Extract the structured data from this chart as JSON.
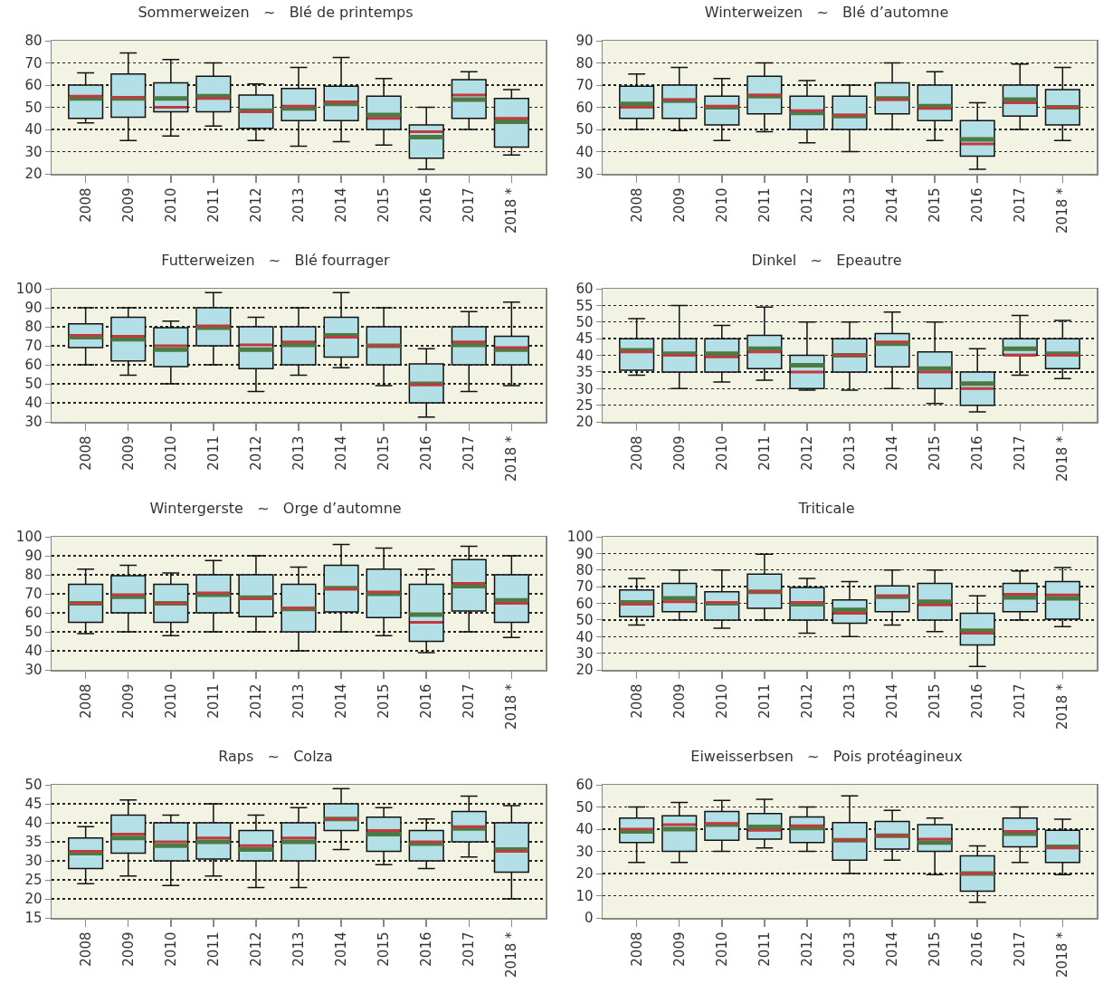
{
  "chart_data": [
    {
      "type": "box",
      "title": "Sommerweizen   ~   Blé de printemps",
      "categories": [
        "2008",
        "2009",
        "2010",
        "2011",
        "2012",
        "2013",
        "2014",
        "2015",
        "2016",
        "2017",
        "2018 *"
      ],
      "color": "#b3dfe6",
      "ylim": [
        20,
        80
      ],
      "yticks": [
        20,
        30,
        40,
        50,
        60,
        70,
        80
      ],
      "grid": "y",
      "boxes": [
        {
          "low": 43,
          "q1": 45,
          "median": 55,
          "q3": 60,
          "high": 65.5,
          "mean": 54
        },
        {
          "low": 35,
          "q1": 45.5,
          "median": 54.5,
          "q3": 65,
          "high": 74.5,
          "mean": 54
        },
        {
          "low": 37,
          "q1": 48,
          "median": 50,
          "q3": 61,
          "high": 71.5,
          "mean": 54
        },
        {
          "low": 41.5,
          "q1": 48,
          "median": 54,
          "q3": 64,
          "high": 70,
          "mean": 55
        },
        {
          "low": 35,
          "q1": 40.5,
          "median": 48,
          "q3": 55.5,
          "high": 60.5,
          "mean": 48.5
        },
        {
          "low": 32.5,
          "q1": 44,
          "median": 50.5,
          "q3": 58.5,
          "high": 68,
          "mean": 49.5
        },
        {
          "low": 34.5,
          "q1": 44,
          "median": 52.5,
          "q3": 59.5,
          "high": 72.5,
          "mean": 51.5
        },
        {
          "low": 33,
          "q1": 40,
          "median": 45,
          "q3": 55,
          "high": 63,
          "mean": 46.5
        },
        {
          "low": 22,
          "q1": 27,
          "median": 39,
          "q3": 42,
          "high": 50,
          "mean": 36.5
        },
        {
          "low": 40,
          "q1": 45,
          "median": 55.5,
          "q3": 62.5,
          "high": 66,
          "mean": 53.5
        },
        {
          "low": 28.5,
          "q1": 32,
          "median": 45,
          "q3": 54,
          "high": 58,
          "mean": 43.5
        }
      ]
    },
    {
      "type": "box",
      "title": "Winterweizen   ~   Blé d’automne",
      "categories": [
        "2008",
        "2009",
        "2010",
        "2011",
        "2012",
        "2013",
        "2014",
        "2015",
        "2016",
        "2017",
        "2018 *"
      ],
      "color": "#b3dfe6",
      "ylim": [
        30,
        90
      ],
      "yticks": [
        30,
        40,
        50,
        60,
        70,
        80,
        90
      ],
      "grid": "y",
      "boxes": [
        {
          "low": 50,
          "q1": 55,
          "median": 60,
          "q3": 69.5,
          "high": 75,
          "mean": 61.5
        },
        {
          "low": 49.5,
          "q1": 55,
          "median": 63.5,
          "q3": 70,
          "high": 78,
          "mean": 63
        },
        {
          "low": 45,
          "q1": 52,
          "median": 60.5,
          "q3": 65,
          "high": 73,
          "mean": 60
        },
        {
          "low": 49,
          "q1": 57,
          "median": 65.5,
          "q3": 74,
          "high": 80,
          "mean": 65
        },
        {
          "low": 44,
          "q1": 50,
          "median": 58.5,
          "q3": 65,
          "high": 72,
          "mean": 57.5
        },
        {
          "low": 40,
          "q1": 50,
          "median": 56.5,
          "q3": 65,
          "high": 70,
          "mean": 56
        },
        {
          "low": 50,
          "q1": 57,
          "median": 63.5,
          "q3": 71,
          "high": 80,
          "mean": 64
        },
        {
          "low": 45,
          "q1": 54,
          "median": 59.5,
          "q3": 70,
          "high": 76,
          "mean": 60.5
        },
        {
          "low": 32,
          "q1": 38,
          "median": 43.5,
          "q3": 54,
          "high": 62,
          "mean": 45.5
        },
        {
          "low": 50,
          "q1": 56,
          "median": 62,
          "q3": 70,
          "high": 79.5,
          "mean": 63.5
        },
        {
          "low": 45,
          "q1": 52,
          "median": 60,
          "q3": 68,
          "high": 78,
          "mean": 60
        }
      ]
    },
    {
      "type": "box",
      "title": "Futterweizen   ~   Blé fourrager",
      "categories": [
        "2008",
        "2009",
        "2010",
        "2011",
        "2012",
        "2013",
        "2014",
        "2015",
        "2016",
        "2017",
        "2018 *"
      ],
      "color": "#b3dfe6",
      "ylim": [
        30,
        100
      ],
      "yticks": [
        30,
        40,
        50,
        60,
        70,
        80,
        90,
        100
      ],
      "grid": "y",
      "boxes": [
        {
          "low": 60,
          "q1": 69,
          "median": 75.5,
          "q3": 81.5,
          "high": 90,
          "mean": 74.5
        },
        {
          "low": 54.5,
          "q1": 62,
          "median": 75,
          "q3": 85,
          "high": 90,
          "mean": 73.5
        },
        {
          "low": 50,
          "q1": 59,
          "median": 70,
          "q3": 79.5,
          "high": 83,
          "mean": 68
        },
        {
          "low": 60,
          "q1": 70,
          "median": 80.5,
          "q3": 90,
          "high": 98,
          "mean": 79.5
        },
        {
          "low": 46,
          "q1": 58,
          "median": 70.5,
          "q3": 80,
          "high": 85,
          "mean": 68
        },
        {
          "low": 54.5,
          "q1": 60,
          "median": 72,
          "q3": 80,
          "high": 90,
          "mean": 70.5
        },
        {
          "low": 58.5,
          "q1": 64,
          "median": 74.5,
          "q3": 85,
          "high": 98,
          "mean": 75.5
        },
        {
          "low": 49,
          "q1": 60,
          "median": 70,
          "q3": 80,
          "high": 90,
          "mean": 70
        },
        {
          "low": 32.5,
          "q1": 40,
          "median": 49.5,
          "q3": 60.5,
          "high": 68.5,
          "mean": 50
        },
        {
          "low": 46,
          "q1": 60,
          "median": 72,
          "q3": 80,
          "high": 88,
          "mean": 70.5
        },
        {
          "low": 49,
          "q1": 60,
          "median": 69,
          "q3": 75,
          "high": 93,
          "mean": 68
        }
      ]
    },
    {
      "type": "box",
      "title": "Dinkel   ~   Epeautre",
      "categories": [
        "2008",
        "2009",
        "2010",
        "2011",
        "2012",
        "2013",
        "2014",
        "2015",
        "2016",
        "2017",
        "2018 *"
      ],
      "color": "#b3dfe6",
      "ylim": [
        20,
        60
      ],
      "yticks": [
        20,
        25,
        30,
        35,
        40,
        45,
        50,
        55,
        60
      ],
      "grid": "y",
      "boxes": [
        {
          "low": 34,
          "q1": 35.5,
          "median": 41,
          "q3": 45,
          "high": 51,
          "mean": 41.5
        },
        {
          "low": 30,
          "q1": 35,
          "median": 40,
          "q3": 45,
          "high": 55,
          "mean": 40.5
        },
        {
          "low": 32,
          "q1": 35,
          "median": 39.5,
          "q3": 45,
          "high": 49,
          "mean": 40.5
        },
        {
          "low": 32.5,
          "q1": 36,
          "median": 41,
          "q3": 46,
          "high": 54.5,
          "mean": 42
        },
        {
          "low": 29.5,
          "q1": 30,
          "median": 35,
          "q3": 40,
          "high": 50,
          "mean": 37
        },
        {
          "low": 29.5,
          "q1": 35,
          "median": 40,
          "q3": 45,
          "high": 50,
          "mean": 40
        },
        {
          "low": 30,
          "q1": 36.5,
          "median": 44,
          "q3": 46.5,
          "high": 53,
          "mean": 43.5
        },
        {
          "low": 25.5,
          "q1": 30,
          "median": 35,
          "q3": 41,
          "high": 50,
          "mean": 36
        },
        {
          "low": 23,
          "q1": 25,
          "median": 30,
          "q3": 35,
          "high": 42,
          "mean": 31.5
        },
        {
          "low": 34,
          "q1": 40,
          "median": 40,
          "q3": 45,
          "high": 52,
          "mean": 42
        },
        {
          "low": 33,
          "q1": 36,
          "median": 40,
          "q3": 45,
          "high": 50.5,
          "mean": 40.5
        }
      ]
    },
    {
      "type": "box",
      "title": "Wintergerste   ~   Orge d’automne",
      "categories": [
        "2008",
        "2009",
        "2010",
        "2011",
        "2012",
        "2013",
        "2014",
        "2015",
        "2016",
        "2017",
        "2018 *"
      ],
      "color": "#b3dfe6",
      "ylim": [
        30,
        100
      ],
      "yticks": [
        30,
        40,
        50,
        60,
        70,
        80,
        90,
        100
      ],
      "grid": "y",
      "boxes": [
        {
          "low": 49,
          "q1": 55,
          "median": 65,
          "q3": 75,
          "high": 83,
          "mean": 65
        },
        {
          "low": 50,
          "q1": 60,
          "median": 69.5,
          "q3": 79.5,
          "high": 85,
          "mean": 68.5
        },
        {
          "low": 48,
          "q1": 55,
          "median": 65,
          "q3": 75,
          "high": 81,
          "mean": 65
        },
        {
          "low": 50,
          "q1": 60,
          "median": 70.5,
          "q3": 80,
          "high": 87.5,
          "mean": 69.5
        },
        {
          "low": 50,
          "q1": 58,
          "median": 67.5,
          "q3": 80,
          "high": 90,
          "mean": 68
        },
        {
          "low": 40,
          "q1": 50,
          "median": 62.5,
          "q3": 75,
          "high": 84,
          "mean": 62
        },
        {
          "low": 50,
          "q1": 60.5,
          "median": 72.5,
          "q3": 85,
          "high": 96,
          "mean": 73
        },
        {
          "low": 48,
          "q1": 57.5,
          "median": 71,
          "q3": 83,
          "high": 94,
          "mean": 70
        },
        {
          "low": 39,
          "q1": 45,
          "median": 55,
          "q3": 75,
          "high": 83,
          "mean": 59
        },
        {
          "low": 50,
          "q1": 61,
          "median": 75.5,
          "q3": 88,
          "high": 95,
          "mean": 74
        },
        {
          "low": 47,
          "q1": 55,
          "median": 65,
          "q3": 80,
          "high": 90,
          "mean": 66.5
        }
      ]
    },
    {
      "type": "box",
      "title": "Triticale",
      "categories": [
        "2008",
        "2009",
        "2010",
        "2011",
        "2012",
        "2013",
        "2014",
        "2015",
        "2016",
        "2017",
        "2018 *"
      ],
      "color": "#b3dfe6",
      "ylim": [
        20,
        100
      ],
      "yticks": [
        20,
        30,
        40,
        50,
        60,
        70,
        80,
        90,
        100
      ],
      "grid": "y",
      "boxes": [
        {
          "low": 47,
          "q1": 52,
          "median": 59.5,
          "q3": 68,
          "high": 75,
          "mean": 60.5
        },
        {
          "low": 50,
          "q1": 55,
          "median": 61,
          "q3": 72,
          "high": 80,
          "mean": 63
        },
        {
          "low": 45,
          "q1": 50,
          "median": 60.5,
          "q3": 67,
          "high": 80,
          "mean": 60
        },
        {
          "low": 50,
          "q1": 57,
          "median": 67,
          "q3": 77.5,
          "high": 89.5,
          "mean": 67
        },
        {
          "low": 42,
          "q1": 50,
          "median": 60.5,
          "q3": 69.5,
          "high": 75,
          "mean": 59.5
        },
        {
          "low": 40,
          "q1": 48,
          "median": 54,
          "q3": 62,
          "high": 73,
          "mean": 56
        },
        {
          "low": 47,
          "q1": 55,
          "median": 64.5,
          "q3": 70.5,
          "high": 80,
          "mean": 64
        },
        {
          "low": 43,
          "q1": 50,
          "median": 59,
          "q3": 72,
          "high": 80,
          "mean": 61
        },
        {
          "low": 22,
          "q1": 35,
          "median": 42,
          "q3": 54,
          "high": 64.5,
          "mean": 43.5
        },
        {
          "low": 50,
          "q1": 55,
          "median": 65.5,
          "q3": 72,
          "high": 79.5,
          "mean": 63.5
        },
        {
          "low": 46,
          "q1": 50.5,
          "median": 65,
          "q3": 73,
          "high": 81.5,
          "mean": 63
        }
      ]
    },
    {
      "type": "box",
      "title": "Raps   ~   Colza",
      "categories": [
        "2008",
        "2009",
        "2010",
        "2011",
        "2012",
        "2013",
        "2014",
        "2015",
        "2016",
        "2017",
        "2018 *"
      ],
      "color": "#b3dfe6",
      "ylim": [
        15,
        50
      ],
      "yticks": [
        15,
        20,
        25,
        30,
        35,
        40,
        45,
        50
      ],
      "grid": "y",
      "boxes": [
        {
          "low": 24,
          "q1": 28,
          "median": 32.5,
          "q3": 36,
          "high": 39,
          "mean": 32
        },
        {
          "low": 26,
          "q1": 32,
          "median": 37,
          "q3": 42,
          "high": 46,
          "mean": 36
        },
        {
          "low": 23.5,
          "q1": 30,
          "median": 35,
          "q3": 40,
          "high": 42,
          "mean": 34
        },
        {
          "low": 26,
          "q1": 30.5,
          "median": 36,
          "q3": 40,
          "high": 45,
          "mean": 35
        },
        {
          "low": 23,
          "q1": 30,
          "median": 34,
          "q3": 38,
          "high": 42,
          "mean": 33
        },
        {
          "low": 23,
          "q1": 30,
          "median": 36,
          "q3": 40,
          "high": 44,
          "mean": 35
        },
        {
          "low": 33,
          "q1": 38,
          "median": 41,
          "q3": 45,
          "high": 49,
          "mean": 41
        },
        {
          "low": 29,
          "q1": 32.5,
          "median": 38,
          "q3": 41.5,
          "high": 44,
          "mean": 37
        },
        {
          "low": 28,
          "q1": 30,
          "median": 35,
          "q3": 38,
          "high": 41,
          "mean": 34.5
        },
        {
          "low": 31,
          "q1": 35,
          "median": 39,
          "q3": 43,
          "high": 47,
          "mean": 38.5
        },
        {
          "low": 20,
          "q1": 27,
          "median": 32.5,
          "q3": 40,
          "high": 44.5,
          "mean": 33
        }
      ]
    },
    {
      "type": "box",
      "title": "Eiweisserbsen   ~   Pois protéagineux",
      "categories": [
        "2008",
        "2009",
        "2010",
        "2011",
        "2012",
        "2013",
        "2014",
        "2015",
        "2016",
        "2017",
        "2018 *"
      ],
      "color": "#b3dfe6",
      "ylim": [
        0,
        60
      ],
      "yticks": [
        0,
        10,
        20,
        30,
        40,
        50,
        60
      ],
      "grid": "y",
      "boxes": [
        {
          "low": 25,
          "q1": 34,
          "median": 40,
          "q3": 45,
          "high": 50,
          "mean": 39
        },
        {
          "low": 25,
          "q1": 30,
          "median": 42,
          "q3": 46,
          "high": 52,
          "mean": 40
        },
        {
          "low": 30,
          "q1": 35,
          "median": 42.5,
          "q3": 48,
          "high": 53,
          "mean": 42
        },
        {
          "low": 31.5,
          "q1": 35.5,
          "median": 39.5,
          "q3": 47,
          "high": 53.5,
          "mean": 41
        },
        {
          "low": 30,
          "q1": 34,
          "median": 41.5,
          "q3": 45.5,
          "high": 50,
          "mean": 40.5
        },
        {
          "low": 20,
          "q1": 26,
          "median": 35,
          "q3": 43,
          "high": 55,
          "mean": 35
        },
        {
          "low": 26,
          "q1": 31,
          "median": 37,
          "q3": 43.5,
          "high": 48.5,
          "mean": 37
        },
        {
          "low": 19.5,
          "q1": 30,
          "median": 35.5,
          "q3": 42,
          "high": 45,
          "mean": 34
        },
        {
          "low": 7,
          "q1": 12,
          "median": 20,
          "q3": 28,
          "high": 32.5,
          "mean": 20
        },
        {
          "low": 25,
          "q1": 32,
          "median": 39,
          "q3": 45,
          "high": 50,
          "mean": 38
        },
        {
          "low": 19.5,
          "q1": 25,
          "median": 31.5,
          "q3": 39.5,
          "high": 44.5,
          "mean": 32
        }
      ]
    }
  ]
}
